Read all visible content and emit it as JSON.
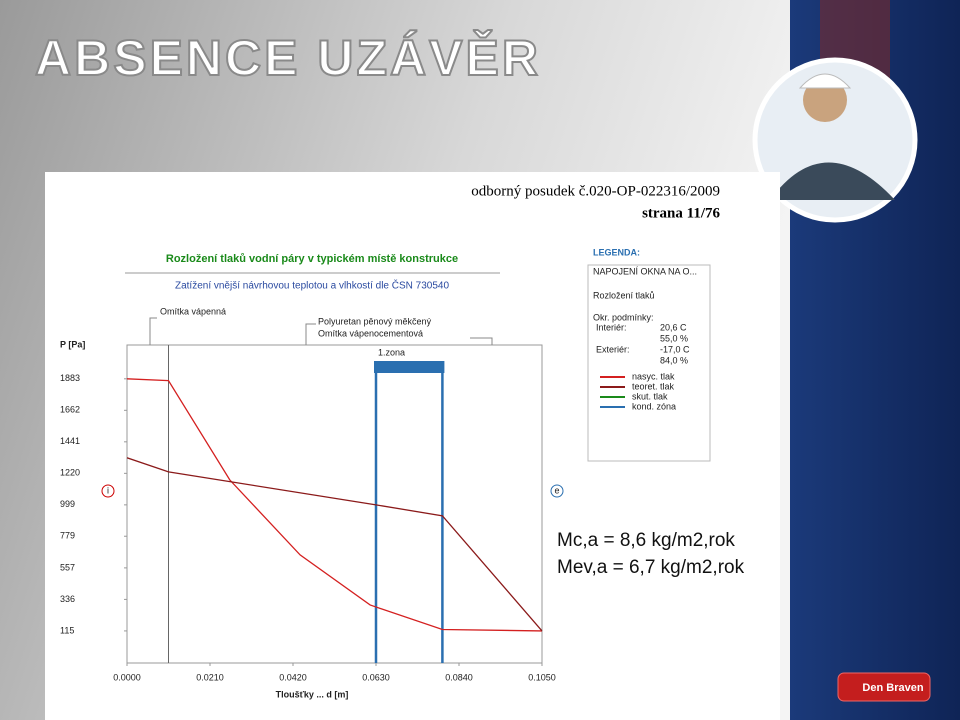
{
  "slide": {
    "title": "ABSENCE UZÁVĚR",
    "logo": "Den Braven"
  },
  "document": {
    "header": "odborný posudek č.020-OP-022316/2009",
    "page": "strana 11/76"
  },
  "results": [
    "Mc,a = 8,6 kg/m2,rok",
    "Mev,a = 6,7 kg/m2,rok"
  ],
  "chart_data": {
    "type": "line",
    "title": "Rozložení tlaků vodní páry v typickém místě konstrukce",
    "subtitle": "Zatížení vnější návrhovou teplotou a vlhkostí dle ČSN 730540",
    "y_label": "P [Pa]",
    "x_label": "Tloušťky ... d [m]",
    "side_labels": [
      "i",
      "e"
    ],
    "layers": [
      "Omítka vápenná",
      "Polyuretan pěnový měkčený",
      "Omítka vápenocementová"
    ],
    "layer_boundaries": [
      0.0105
    ],
    "zone_label": "1.zona",
    "condensation_zone": [
      0.063,
      0.0798
    ],
    "xlim": [
      0,
      0.105
    ],
    "xticks": [
      {
        "value": 0,
        "label": "0.0000"
      },
      {
        "value": 0.021,
        "label": "0.0210"
      },
      {
        "value": 0.042,
        "label": "0.0420"
      },
      {
        "value": 0.063,
        "label": "0.0630"
      },
      {
        "value": 0.084,
        "label": "0.0840"
      },
      {
        "value": 0.105,
        "label": "0.1050"
      }
    ],
    "ylim": [
      -110,
      2120
    ],
    "yticks": [
      115,
      336,
      557,
      779,
      999,
      1220,
      1441,
      1662,
      1883
    ],
    "series": [
      {
        "name": "nasyc. tlak",
        "color": "#d42020",
        "x": [
          0,
          0.0105,
          0.026,
          0.0438,
          0.0615,
          0.0798,
          0.105
        ],
        "values": [
          1883,
          1870,
          1174,
          648,
          297,
          125,
          115
        ]
      },
      {
        "name": "teoret. tlak",
        "color": "#8b1a1a",
        "x": [
          0,
          0.0105,
          0.063,
          0.0798,
          0.105
        ],
        "values": [
          1329,
          1230,
          999,
          922,
          115
        ]
      }
    ],
    "legend": {
      "title": "LEGENDA:",
      "lines": [
        "NAPOJENÍ OKNA NA O...",
        "Rozložení tlaků",
        "Okr. podmínky:"
      ],
      "conditions": [
        [
          "Interiér:",
          "20,6 C"
        ],
        [
          "",
          "55,0 %"
        ],
        [
          "Exteriér:",
          "-17,0 C"
        ],
        [
          "",
          "84,0 %"
        ]
      ],
      "extra": [
        {
          "name": "skut. tlak",
          "color": "#1a8a1a"
        },
        {
          "name": "kond. zóna",
          "color": "#2a6fb0"
        }
      ]
    }
  }
}
